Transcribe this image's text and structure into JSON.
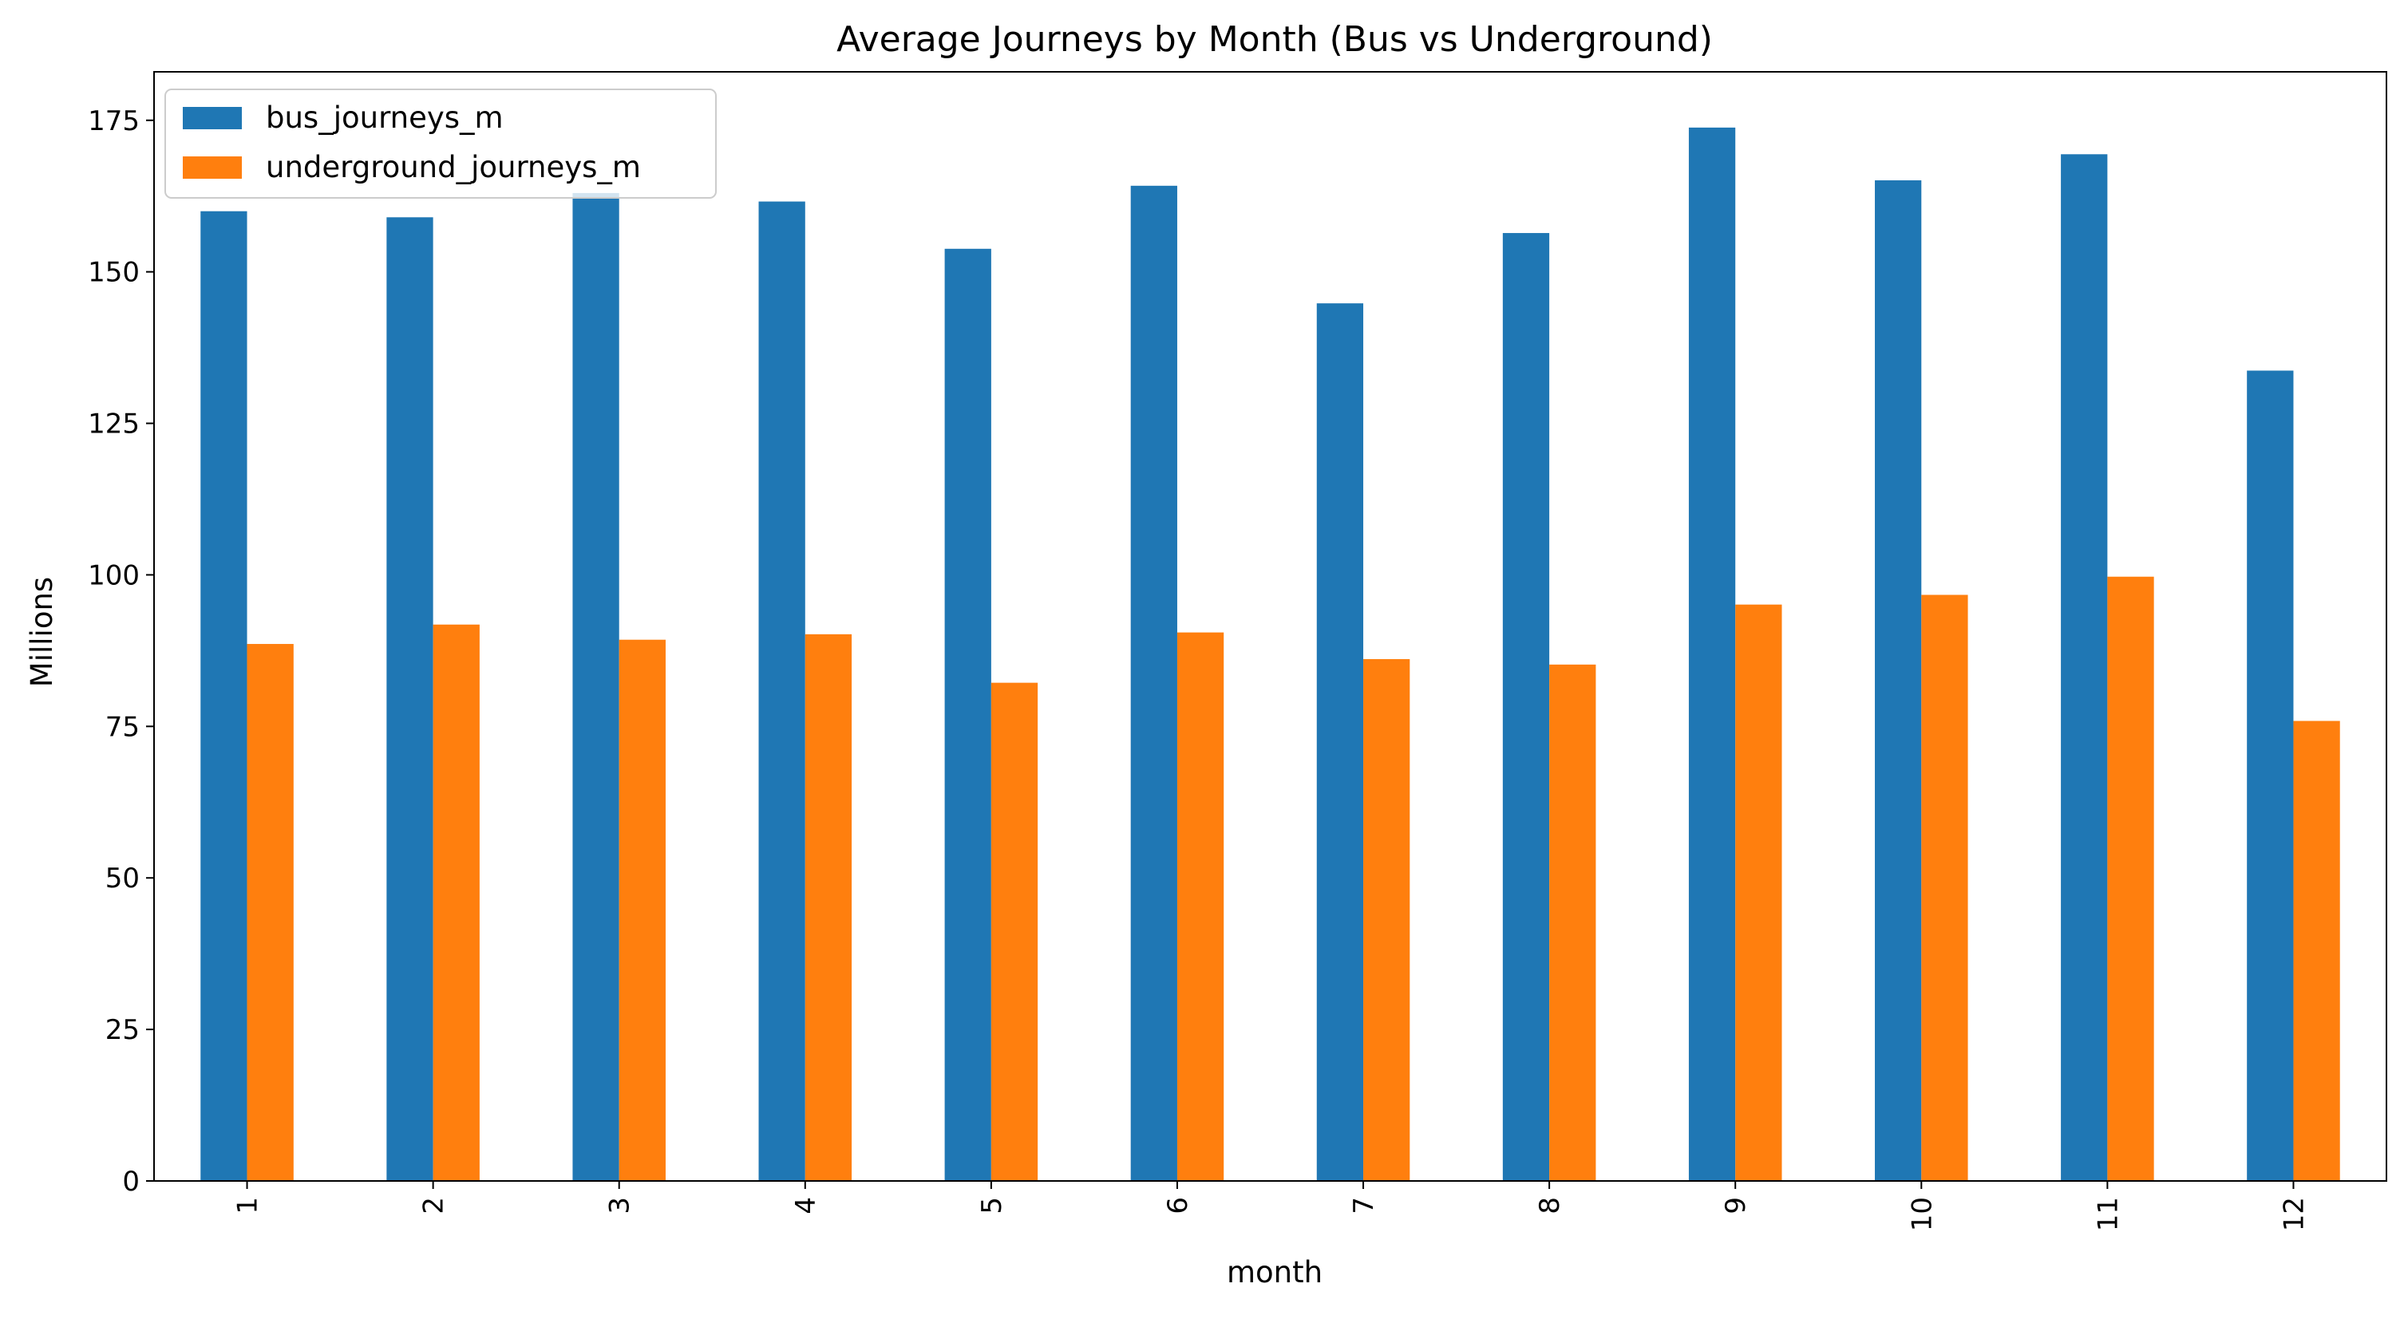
{
  "chart_data": {
    "type": "bar",
    "title": "Average Journeys by Month (Bus vs Underground)",
    "xlabel": "month",
    "ylabel": "Millions",
    "categories": [
      "1",
      "2",
      "3",
      "4",
      "5",
      "6",
      "7",
      "8",
      "9",
      "10",
      "11",
      "12"
    ],
    "series": [
      {
        "name": "bus_journeys_m",
        "color": "#1f77b4",
        "values": [
          160.0,
          159.0,
          163.0,
          161.6,
          153.8,
          164.2,
          144.8,
          156.4,
          173.8,
          165.1,
          169.4,
          133.7
        ]
      },
      {
        "name": "underground_journeys_m",
        "color": "#ff7f0e",
        "values": [
          88.6,
          91.8,
          89.3,
          90.2,
          82.2,
          90.5,
          86.1,
          85.2,
          95.1,
          96.7,
          99.7,
          75.9
        ]
      }
    ],
    "ylim": [
      0,
      183
    ],
    "yticks": [
      0,
      25,
      50,
      75,
      100,
      125,
      150,
      175
    ],
    "xtick_rotation": "vertical",
    "grid": false,
    "legend_position": "upper left"
  }
}
